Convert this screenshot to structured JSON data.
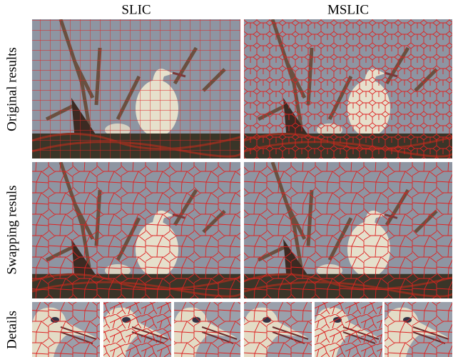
{
  "header": {
    "columns": [
      "SLIC",
      "MSLIC"
    ]
  },
  "rows": [
    {
      "label": "Original results"
    },
    {
      "label": "Swapping resuls"
    },
    {
      "label": "Details"
    }
  ]
}
